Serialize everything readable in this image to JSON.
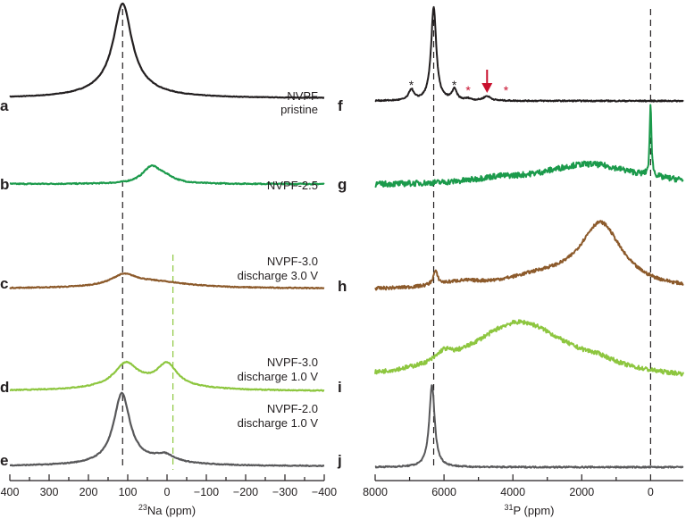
{
  "chart_data": [
    {
      "type": "line",
      "nucleus": "23Na",
      "xlabel_sup": "23",
      "xlabel": "Na (ppm)",
      "xlim": [
        400,
        -400
      ],
      "xticks": [
        400,
        300,
        200,
        100,
        0,
        -100,
        -200,
        -300,
        -400
      ],
      "xtick_labels": [
        "400",
        "300",
        "200",
        "100",
        "0",
        "−100",
        "−200",
        "−300",
        "−400"
      ],
      "minor_tick_step": 50,
      "reference_lines": [
        {
          "ppm": 113,
          "color": "#231f20"
        },
        {
          "ppm": -15,
          "color": "#8dc63f"
        }
      ],
      "series": [
        {
          "letter": "a",
          "label": [
            "NVPF",
            "pristine"
          ],
          "color": "#231f20",
          "noise": 0.3,
          "peaks": [
            [
              113,
              55,
              92
            ],
            [
              113,
              160,
              14
            ]
          ]
        },
        {
          "letter": "b",
          "label": [
            "NVPF-2.5"
          ],
          "color": "#1b9a4b",
          "noise": 0.6,
          "peaks": [
            [
              40,
              55,
              18
            ],
            [
              5,
              60,
              6
            ]
          ]
        },
        {
          "letter": "c",
          "label": [
            "NVPF-3.0",
            "discharge 3.0 V"
          ],
          "color": "#8c5a2b",
          "noise": 0.5,
          "peaks": [
            [
              110,
              80,
              12
            ],
            [
              30,
              220,
              7
            ]
          ]
        },
        {
          "letter": "d",
          "label": [
            "NVPF-3.0",
            "discharge 1.0 V"
          ],
          "color": "#8dc63f",
          "noise": 0.5,
          "peaks": [
            [
              105,
              70,
              25
            ],
            [
              0,
              60,
              24
            ],
            [
              50,
              260,
              7
            ]
          ]
        },
        {
          "letter": "e",
          "label": [
            "NVPF-2.0",
            "discharge 1.0 V"
          ],
          "color": "#58585a",
          "noise": 0.5,
          "peaks": [
            [
              115,
              50,
              78
            ],
            [
              5,
              60,
              8
            ],
            [
              60,
              250,
              4
            ]
          ]
        }
      ]
    },
    {
      "type": "line",
      "nucleus": "31P",
      "xlabel_sup": "31",
      "xlabel": "P (ppm)",
      "xlim": [
        8000,
        -950
      ],
      "xticks": [
        8000,
        6000,
        4000,
        2000,
        0
      ],
      "xtick_labels": [
        "8000",
        "6000",
        "4000",
        "2000",
        "0"
      ],
      "minor_tick_step": 1000,
      "reference_lines": [
        {
          "ppm": 6300,
          "color": "#231f20"
        },
        {
          "ppm": 0,
          "color": "#231f20"
        }
      ],
      "series": [
        {
          "letter": "f",
          "label": [],
          "color": "#231f20",
          "noise": 0.7,
          "peaks": [
            [
              6300,
              180,
              105
            ],
            [
              6950,
              170,
              12
            ],
            [
              5700,
              170,
              12
            ],
            [
              4750,
              250,
              5
            ],
            [
              5300,
              200,
              2
            ]
          ]
        },
        {
          "letter": "g",
          "label": [],
          "color": "#1b9a4b",
          "noise": 3.2,
          "peaks": [
            [
              1800,
              3400,
              24
            ],
            [
              0,
              60,
              80
            ],
            [
              4500,
              1500,
              4
            ]
          ]
        },
        {
          "letter": "h",
          "label": [],
          "color": "#8c5a2b",
          "noise": 1.8,
          "peaks": [
            [
              1450,
              1500,
              72
            ],
            [
              3200,
              2500,
              12
            ],
            [
              6250,
              160,
              15
            ],
            [
              5500,
              1500,
              6
            ]
          ]
        },
        {
          "letter": "i",
          "label": [],
          "color": "#8dc63f",
          "noise": 2.4,
          "peaks": [
            [
              3800,
              3600,
              66
            ],
            [
              6000,
              500,
              10
            ],
            [
              1500,
              1200,
              6
            ]
          ]
        },
        {
          "letter": "j",
          "label": [],
          "color": "#58585a",
          "noise": 0.8,
          "peaks": [
            [
              6350,
              190,
              92
            ]
          ]
        }
      ],
      "annotations": [
        {
          "type": "asterisk",
          "ppm": 6950,
          "color": "#231f20"
        },
        {
          "type": "asterisk",
          "ppm": 5700,
          "color": "#231f20"
        },
        {
          "type": "asterisk",
          "ppm": 5300,
          "color": "#c8102e"
        },
        {
          "type": "asterisk",
          "ppm": 4200,
          "color": "#c8102e"
        },
        {
          "type": "arrow",
          "ppm": 4750,
          "color": "#c8102e"
        }
      ]
    }
  ]
}
